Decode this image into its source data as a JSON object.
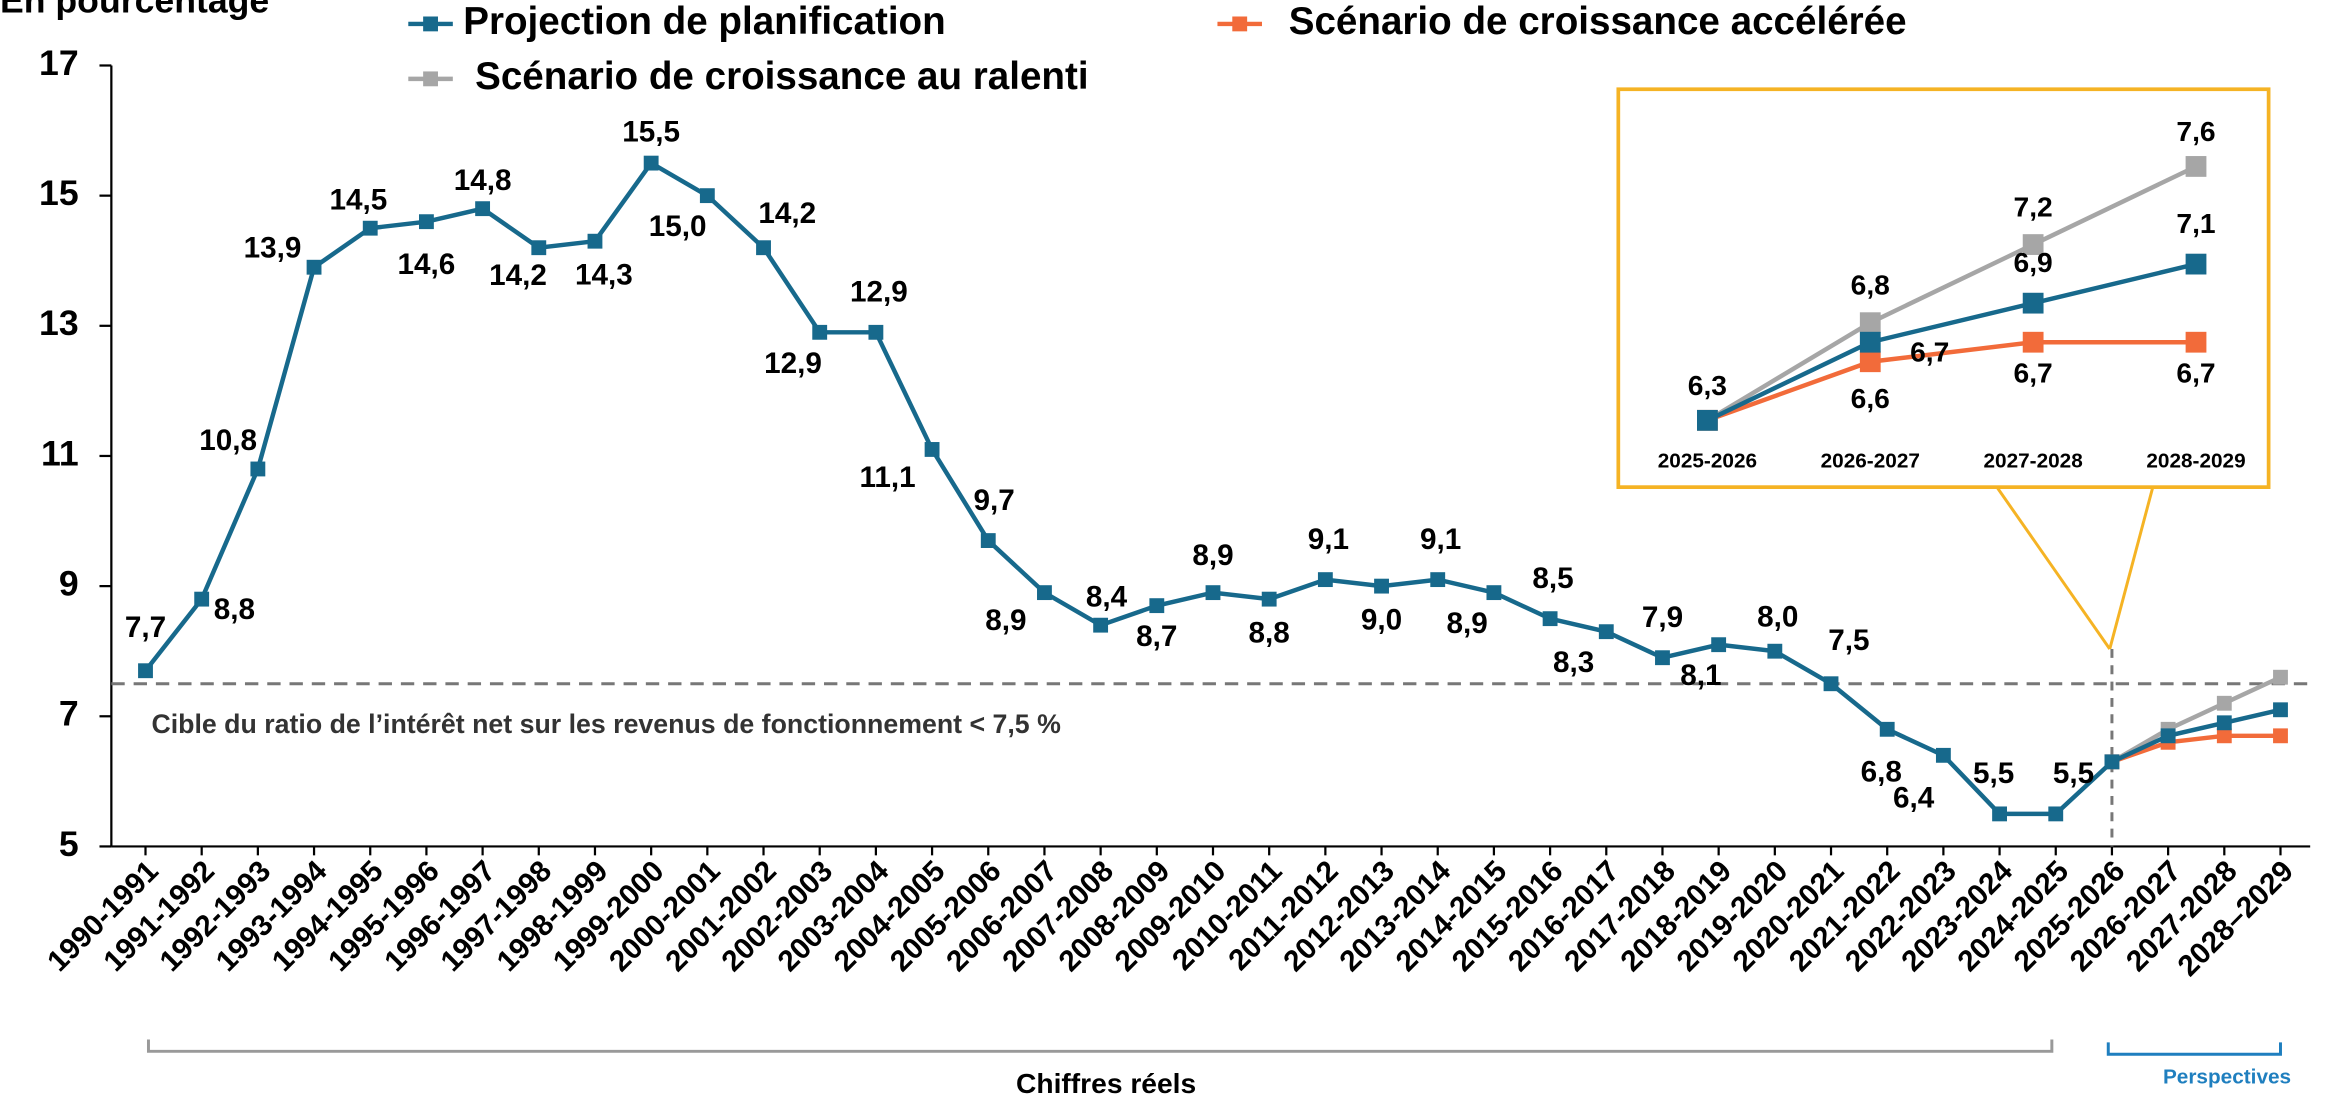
{
  "chart_data": [
    {
      "type": "line",
      "y_label": "En pourcentage",
      "categories": [
        "1990-1991",
        "1991-1992",
        "1992-1993",
        "1993-1994",
        "1994-1995",
        "1995-1996",
        "1996-1997",
        "1997-1998",
        "1998-1999",
        "1999-2000",
        "2000-2001",
        "2001-2002",
        "2002-2003",
        "2003-2004",
        "2004-2005",
        "2005-2006",
        "2006-2007",
        "2007-2008",
        "2008-2009",
        "2009-2010",
        "2010-2011",
        "2011-2012",
        "2012-2013",
        "2013-2014",
        "2014-2015",
        "2015-2016",
        "2016-2017",
        "2017-2018",
        "2018-2019",
        "2019-2020",
        "2020-2021",
        "2021-2022",
        "2022-2023",
        "2023-2024",
        "2024-2025",
        "2025-2026",
        "2026-2027",
        "2027-2028",
        "2028–2029"
      ],
      "series": [
        {
          "name": "Projection de planification",
          "color": "#17698c",
          "values": [
            7.7,
            8.8,
            10.8,
            13.9,
            14.5,
            14.6,
            14.8,
            14.2,
            14.3,
            15.5,
            15.0,
            14.2,
            12.9,
            12.9,
            11.1,
            9.7,
            8.9,
            8.4,
            8.7,
            8.9,
            8.8,
            9.1,
            9.0,
            9.1,
            8.9,
            8.5,
            8.3,
            7.9,
            8.1,
            8.0,
            7.5,
            6.8,
            6.4,
            5.5,
            5.5,
            6.3,
            6.7,
            6.9,
            7.1
          ],
          "value_labels": [
            "7,7",
            "8,8",
            "10,8",
            "13,9",
            "14,5",
            "14,6",
            "14,8",
            "14,2",
            "14,3",
            "15,5",
            "15,0",
            "14,2",
            "12,9",
            "12,9",
            "11,1",
            "9,7",
            "8,9",
            "8,4",
            "8,7",
            "8,9",
            "8,8",
            "9,1",
            "9,0",
            "9,1",
            "8,9",
            "8,5",
            "8,3",
            "7,9",
            "8,1",
            "8,0",
            "7,5",
            "6,8",
            "6,4",
            "5,5",
            "5,5",
            null,
            null,
            null,
            null
          ]
        },
        {
          "name": "Scénario de croissance accélérée",
          "color": "#f26b3a",
          "values": [
            null,
            null,
            null,
            null,
            null,
            null,
            null,
            null,
            null,
            null,
            null,
            null,
            null,
            null,
            null,
            null,
            null,
            null,
            null,
            null,
            null,
            null,
            null,
            null,
            null,
            null,
            null,
            null,
            null,
            null,
            null,
            null,
            null,
            null,
            null,
            6.3,
            6.6,
            6.7,
            6.7
          ]
        },
        {
          "name": "Scénario de croissance au ralenti",
          "color": "#a6a6a6",
          "values": [
            null,
            null,
            null,
            null,
            null,
            null,
            null,
            null,
            null,
            null,
            null,
            null,
            null,
            null,
            null,
            null,
            null,
            null,
            null,
            null,
            null,
            null,
            null,
            null,
            null,
            null,
            null,
            null,
            null,
            null,
            null,
            null,
            null,
            null,
            null,
            6.3,
            6.8,
            7.2,
            7.6
          ]
        }
      ],
      "ylim": [
        5,
        17
      ],
      "yticks": [
        5,
        7,
        9,
        11,
        13,
        15,
        17
      ],
      "target": {
        "value": 7.5,
        "label": "Cible du ratio de l’intérêt net sur les revenus de fonctionnement < 7,5 %"
      },
      "actual_label": "Chiffres réels",
      "outlook_label": "Perspectives"
    },
    {
      "type": "line",
      "categories": [
        "2025-2026",
        "2026-2027",
        "2027-2028",
        "2028-2029"
      ],
      "series": [
        {
          "values": [
            6.3,
            6.7,
            6.9,
            7.1
          ],
          "value_labels": [
            "6,3",
            "6,7",
            "6,9",
            "7,1"
          ]
        },
        {
          "values": [
            6.3,
            6.6,
            6.7,
            6.7
          ],
          "value_labels": [
            null,
            "6,6",
            "6,7",
            "6,7"
          ]
        },
        {
          "values": [
            6.3,
            6.8,
            7.2,
            7.6
          ],
          "value_labels": [
            null,
            "6,8",
            "7,2",
            "7,6"
          ]
        }
      ]
    }
  ]
}
